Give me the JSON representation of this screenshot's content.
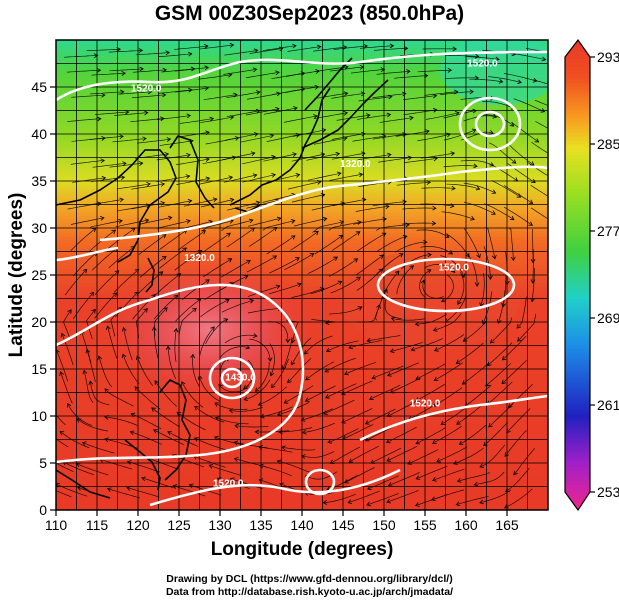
{
  "title": "GSM 00Z30Sep2023 (850.0hPa)",
  "axes": {
    "xlabel": "Longitude (degrees)",
    "ylabel": "Latitude  (degrees)",
    "xlim": [
      110,
      170
    ],
    "ylim": [
      0,
      50
    ],
    "xticks": [
      110,
      115,
      120,
      125,
      130,
      135,
      140,
      145,
      150,
      155,
      160,
      165
    ],
    "yticks": [
      0,
      5,
      10,
      15,
      20,
      25,
      30,
      35,
      40,
      45
    ]
  },
  "colorbar": {
    "min": 253,
    "max": 293,
    "tick_labels": [
      "293",
      "285",
      "277",
      "269",
      "261",
      "253"
    ],
    "colors": [
      "#f0268c",
      "#a020c8",
      "#2020c0",
      "#1c8ee8",
      "#20d0c8",
      "#40d040",
      "#a0e020",
      "#e8e020",
      "#f8a020",
      "#f05020",
      "#e83828"
    ]
  },
  "contours": {
    "color": "#ffffff",
    "labels": [
      {
        "text": "1320.0",
        "lon": 127.5,
        "lat": 26.5
      },
      {
        "text": "1430.0",
        "lon": 132.5,
        "lat": 13.8
      },
      {
        "text": "1520.0",
        "lon": 162.0,
        "lat": 47.2
      },
      {
        "text": "1320.0",
        "lon": 146.5,
        "lat": 36.5
      },
      {
        "text": "1520.0",
        "lon": 121.0,
        "lat": 44.5
      },
      {
        "text": "1520.0",
        "lon": 158.5,
        "lat": 25.5
      },
      {
        "text": "1520.0",
        "lon": 155.0,
        "lat": 11.0
      },
      {
        "text": "1520.0",
        "lon": 131.0,
        "lat": 2.5
      }
    ]
  },
  "credits": {
    "line1": "Drawing by DCL (https://www.gfd-dennou.org/library/dcl/)",
    "line2": "Data from http://database.rish.kyoto-u.ac.jp/arch/jmadata/"
  }
}
